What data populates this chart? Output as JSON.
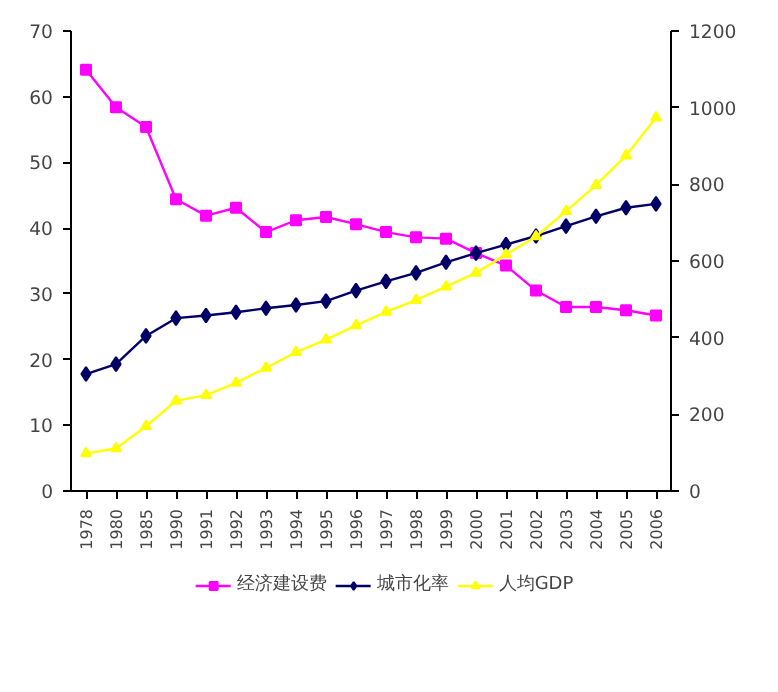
{
  "chart_data": {
    "type": "line",
    "categories": [
      "1978",
      "1980",
      "1985",
      "1990",
      "1991",
      "1992",
      "1993",
      "1994",
      "1995",
      "1996",
      "1997",
      "1998",
      "1999",
      "2000",
      "2001",
      "2002",
      "2003",
      "2004",
      "2005",
      "2006"
    ],
    "series": [
      {
        "name": "经济建设费",
        "color": "#ff00ff",
        "marker": "square",
        "values": [
          64.1,
          58.4,
          55.4,
          44.4,
          41.9,
          43.1,
          39.4,
          41.2,
          41.7,
          40.6,
          39.4,
          38.6,
          38.4,
          36.2,
          34.3,
          30.5,
          28.0,
          28.0,
          27.5,
          26.7
        ]
      },
      {
        "name": "城市化率",
        "color": "#000066",
        "marker": "diamond",
        "values": [
          17.8,
          19.3,
          23.6,
          26.3,
          26.7,
          27.2,
          27.8,
          28.3,
          28.9,
          30.5,
          31.9,
          33.2,
          34.8,
          36.2,
          37.5,
          38.8,
          40.3,
          41.8,
          43.1,
          43.7
        ]
      },
      {
        "name": "人均GDP",
        "color": "#ffff00",
        "marker": "triangle",
        "axis": "y2",
        "values": [
          98,
          111,
          169,
          235,
          250,
          282,
          321,
          362,
          395,
          432,
          467,
          498,
          533,
          569,
          617,
          664,
          730,
          798,
          875,
          974
        ]
      }
    ],
    "ylim": [
      0,
      70
    ],
    "yticks": [
      0,
      10,
      20,
      30,
      40,
      50,
      60,
      70
    ],
    "y2lim": [
      0,
      1200
    ],
    "y2ticks": [
      0,
      200,
      400,
      600,
      800,
      1000,
      1200
    ],
    "grid": false,
    "legend": "bottom"
  }
}
